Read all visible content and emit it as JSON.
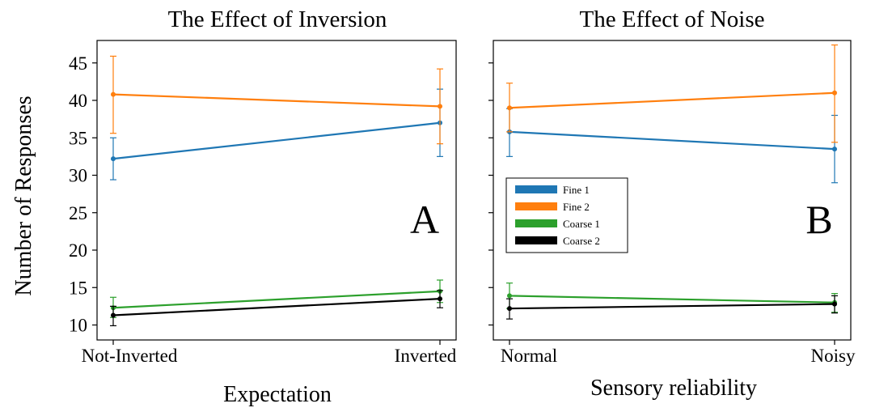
{
  "colors": {
    "fine_1": "#1f77b4",
    "fine_2": "#ff7f0e",
    "coarse_1": "#2ca02c",
    "coarse_2": "#000000"
  },
  "shared": {
    "ylabel": "Number of Responses"
  },
  "chart_data": [
    {
      "type": "line",
      "title": "The Effect of Inversion",
      "xlabel": "Expectation",
      "ylabel": "Number of Responses",
      "panel_letter": "A",
      "categories": [
        "Not-Inverted",
        "Inverted"
      ],
      "ylim": [
        8,
        48
      ],
      "yticks": [
        10,
        15,
        20,
        25,
        30,
        35,
        40,
        45
      ],
      "grid": false,
      "legend": "none",
      "series": [
        {
          "name": "Fine 1",
          "color_key": "fine_1",
          "values": [
            32.2,
            37.0
          ],
          "err_low": [
            29.4,
            32.5
          ],
          "err_high": [
            35.0,
            41.5
          ]
        },
        {
          "name": "Fine 2",
          "color_key": "fine_2",
          "values": [
            40.8,
            39.2
          ],
          "err_low": [
            35.6,
            34.2
          ],
          "err_high": [
            45.9,
            44.2
          ]
        },
        {
          "name": "Coarse 1",
          "color_key": "coarse_1",
          "values": [
            12.3,
            14.5
          ],
          "err_low": [
            11.0,
            13.0
          ],
          "err_high": [
            13.7,
            16.0
          ]
        },
        {
          "name": "Coarse 2",
          "color_key": "coarse_2",
          "values": [
            11.3,
            13.5
          ],
          "err_low": [
            9.9,
            12.3
          ],
          "err_high": [
            12.5,
            14.6
          ]
        }
      ]
    },
    {
      "type": "line",
      "title": "The Effect of Noise",
      "xlabel": "Sensory reliability",
      "ylabel": "",
      "panel_letter": "B",
      "categories": [
        "Normal",
        "Noisy"
      ],
      "ylim": [
        8,
        48
      ],
      "yticks": [
        10,
        15,
        20,
        25,
        30,
        35,
        40,
        45
      ],
      "grid": false,
      "legend": "middle-left",
      "series": [
        {
          "name": "Fine 1",
          "color_key": "fine_1",
          "values": [
            35.8,
            33.5
          ],
          "err_low": [
            32.5,
            29.0
          ],
          "err_high": [
            38.9,
            38.0
          ]
        },
        {
          "name": "Fine 2",
          "color_key": "fine_2",
          "values": [
            39.0,
            41.0
          ],
          "err_low": [
            35.8,
            34.4
          ],
          "err_high": [
            42.3,
            47.4
          ]
        },
        {
          "name": "Coarse 1",
          "color_key": "coarse_1",
          "values": [
            13.9,
            13.0
          ],
          "err_low": [
            12.2,
            11.7
          ],
          "err_high": [
            15.6,
            14.2
          ]
        },
        {
          "name": "Coarse 2",
          "color_key": "coarse_2",
          "values": [
            12.2,
            12.8
          ],
          "err_low": [
            10.8,
            11.6
          ],
          "err_high": [
            13.5,
            13.9
          ]
        }
      ]
    }
  ]
}
